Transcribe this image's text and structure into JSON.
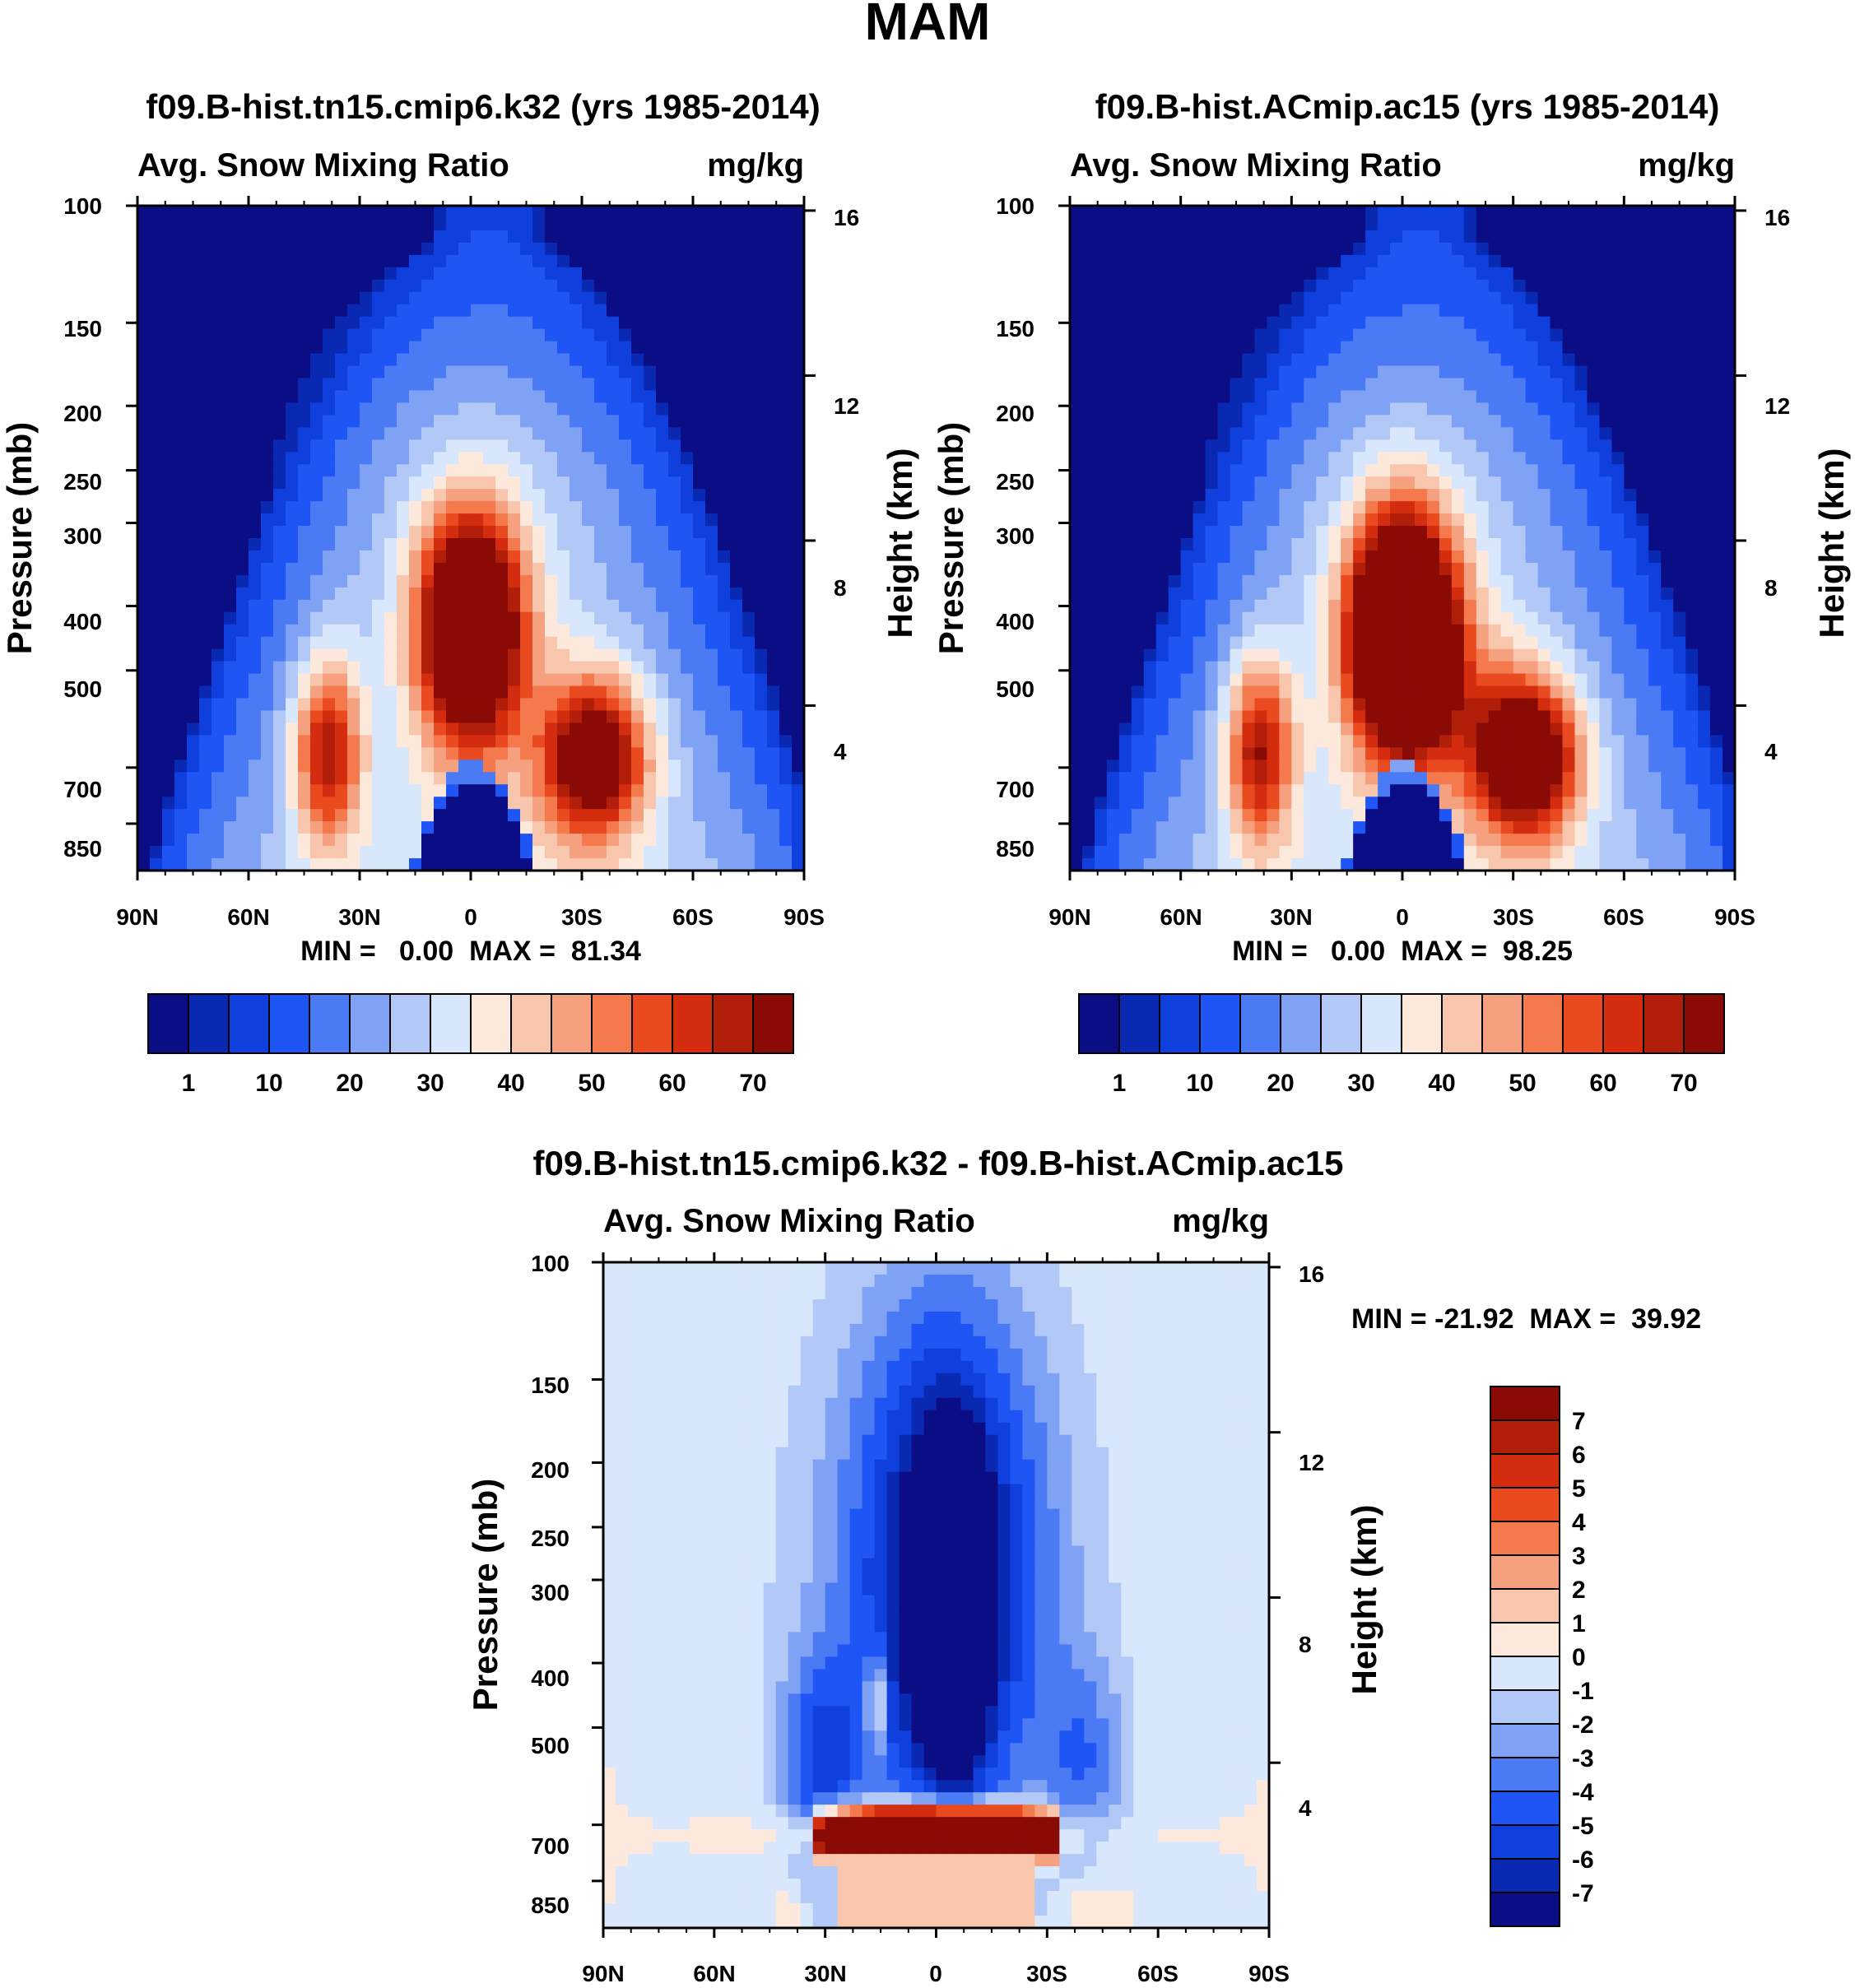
{
  "page": {
    "title": "MAM"
  },
  "colors": {
    "abs_palette": [
      "#0b0d85",
      "#0a29b3",
      "#0f40dd",
      "#1f55f5",
      "#4a7bf5",
      "#7fa2f4",
      "#b2c8f7",
      "#d9e7fc",
      "#fde8dc",
      "#f7c6ad",
      "#f5a17f",
      "#f47a4e",
      "#ea4a20",
      "#d42c0f",
      "#b11e0a",
      "#8a0b05"
    ],
    "diff_palette": [
      "#0b0d85",
      "#0a29b3",
      "#0f40dd",
      "#1f55f5",
      "#4a7bf5",
      "#7fa2f4",
      "#b2c8f7",
      "#d9e7fc",
      "#fde8dc",
      "#f7c6ad",
      "#f5a17f",
      "#f47a4e",
      "#ea4a20",
      "#d42c0f",
      "#b11e0a",
      "#8a0b05"
    ]
  },
  "chart_data": [
    {
      "id": "panel-k32",
      "type": "heatmap",
      "title": "f09.B-hist.tn15.cmip6.k32 (yrs 1985-2014)",
      "left_label": "Avg. Snow Mixing Ratio",
      "right_label": "mg/kg",
      "ylabel": "Pressure (mb)",
      "y2label": "Height (km)",
      "x_ticks": [
        "90N",
        "60N",
        "30N",
        "0",
        "30S",
        "60S",
        "90S"
      ],
      "y_ticks": [
        "100",
        "150",
        "200",
        "250",
        "300",
        "400",
        "500",
        "700",
        "850"
      ],
      "y_tick_values": [
        100,
        150,
        200,
        250,
        300,
        400,
        500,
        700,
        850
      ],
      "ylim": [
        100,
        1000
      ],
      "y2_ticks": [
        "16",
        "12",
        "8",
        "4"
      ],
      "y2_tick_values": [
        16,
        12,
        8,
        4
      ],
      "stats": "MIN =   0.00  MAX =  81.34",
      "min": 0.0,
      "max": 81.34,
      "levels": [
        1,
        5,
        10,
        15,
        20,
        25,
        30,
        35,
        40,
        45,
        50,
        55,
        60,
        65,
        70
      ],
      "colorbar_labels": [
        "1",
        "10",
        "20",
        "30",
        "40",
        "50",
        "60",
        "70"
      ],
      "field": {
        "peak_upper": 78,
        "peak_sh": 80,
        "peak_nh": 70,
        "dip_mid": 0
      }
    },
    {
      "id": "panel-ac15",
      "type": "heatmap",
      "title": "f09.B-hist.ACmip.ac15 (yrs 1985-2014)",
      "left_label": "Avg. Snow Mixing Ratio",
      "right_label": "mg/kg",
      "ylabel": "Pressure (mb)",
      "y2label": "Height (km)",
      "x_ticks": [
        "90N",
        "60N",
        "30N",
        "0",
        "30S",
        "60S",
        "90S"
      ],
      "y_ticks": [
        "100",
        "150",
        "200",
        "250",
        "300",
        "400",
        "500",
        "700",
        "850"
      ],
      "y_tick_values": [
        100,
        150,
        200,
        250,
        300,
        400,
        500,
        700,
        850
      ],
      "ylim": [
        100,
        1000
      ],
      "y2_ticks": [
        "16",
        "12",
        "8",
        "4"
      ],
      "y2_tick_values": [
        16,
        12,
        8,
        4
      ],
      "stats": "MIN =   0.00  MAX =  98.25",
      "min": 0.0,
      "max": 98.25,
      "levels": [
        1,
        5,
        10,
        15,
        20,
        25,
        30,
        35,
        40,
        45,
        50,
        55,
        60,
        65,
        70
      ],
      "colorbar_labels": [
        "1",
        "10",
        "20",
        "30",
        "40",
        "50",
        "60",
        "70"
      ],
      "field": {
        "peak_upper": 95,
        "peak_sh": 90,
        "peak_nh": 72,
        "dip_mid": 1
      }
    },
    {
      "id": "panel-diff",
      "type": "heatmap",
      "title": "f09.B-hist.tn15.cmip6.k32 - f09.B-hist.ACmip.ac15",
      "left_label": "Avg. Snow Mixing Ratio",
      "right_label": "mg/kg",
      "ylabel": "Pressure (mb)",
      "y2label": "Height (km)",
      "x_ticks": [
        "90N",
        "60N",
        "30N",
        "0",
        "30S",
        "60S",
        "90S"
      ],
      "y_ticks": [
        "100",
        "150",
        "200",
        "250",
        "300",
        "400",
        "500",
        "700",
        "850"
      ],
      "y_tick_values": [
        100,
        150,
        200,
        250,
        300,
        400,
        500,
        700,
        850
      ],
      "ylim": [
        100,
        1000
      ],
      "y2_ticks": [
        "16",
        "12",
        "8",
        "4"
      ],
      "y2_tick_values": [
        16,
        12,
        8,
        4
      ],
      "stats": "MIN = -21.92  MAX =  39.92",
      "min": -21.92,
      "max": 39.92,
      "levels": [
        -7,
        -6,
        -5,
        -4,
        -3,
        -2,
        -1,
        0,
        1,
        2,
        3,
        4,
        5,
        6,
        7
      ],
      "colorbar_labels": [
        "7",
        "6",
        "5",
        "4",
        "3",
        "2",
        "1",
        "0",
        "-1",
        "-2",
        "-3",
        "-4",
        "-5",
        "-6",
        "-7"
      ]
    }
  ]
}
